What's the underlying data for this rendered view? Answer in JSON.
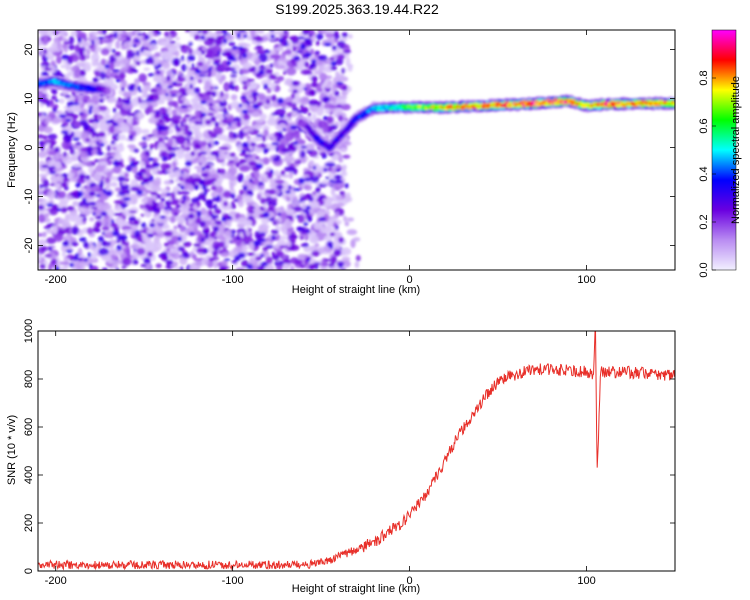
{
  "title": "S199.2025.363.19.44.R22",
  "chart_data": [
    {
      "type": "heatmap",
      "xlabel": "Height of straight line (km)",
      "ylabel": "Frequency (Hz)",
      "xlim": [
        -210,
        150
      ],
      "ylim": [
        -25,
        24
      ],
      "xticks": [
        -200,
        -100,
        0,
        100
      ],
      "yticks": [
        -20,
        -10,
        0,
        10,
        20
      ],
      "colorbar": {
        "label": "Normalized spectral amplitude",
        "range": [
          0,
          1
        ],
        "ticks": [
          0.0,
          0.2,
          0.4,
          0.6,
          0.8
        ],
        "tick_labels": [
          "0.0",
          "0.2",
          "0.4",
          "0.6",
          "0.8"
        ],
        "colors": [
          "#f2f0ff",
          "#b98cf2",
          "#6a00e0",
          "#0000ff",
          "#00ffff",
          "#00ff00",
          "#ffff00",
          "#ff0000",
          "#ff00ff"
        ]
      },
      "noise_region": {
        "x_range": [
          -210,
          -35
        ],
        "freq_range": [
          -25,
          24
        ],
        "typical_amplitude": [
          0.05,
          0.3
        ]
      },
      "signal_track": {
        "x": [
          -210,
          -200,
          -190,
          -180,
          -175,
          -170,
          -60,
          -55,
          -50,
          -45,
          -40,
          -35,
          -30,
          -25,
          -20,
          -10,
          0,
          20,
          40,
          60,
          80,
          90,
          100,
          110,
          130,
          150
        ],
        "frequency": [
          13,
          13.5,
          12.5,
          12,
          12,
          11.5,
          5,
          3,
          1,
          0,
          2,
          4,
          6,
          7,
          8,
          8.2,
          8.2,
          8.2,
          8.5,
          8.8,
          9.2,
          9.5,
          8.5,
          8.8,
          9,
          9
        ],
        "amplitude": [
          0.4,
          0.45,
          0.4,
          0.35,
          0.3,
          0.15,
          0.2,
          0.3,
          0.35,
          0.3,
          0.3,
          0.3,
          0.35,
          0.4,
          0.45,
          0.5,
          0.6,
          0.75,
          0.8,
          0.85,
          0.85,
          0.85,
          0.7,
          0.85,
          0.8,
          0.75
        ]
      }
    },
    {
      "type": "line",
      "xlabel": "Height of straight line (km)",
      "ylabel": "SNR (10 * v/v)",
      "xlim": [
        -210,
        150
      ],
      "ylim": [
        0,
        1000
      ],
      "xticks": [
        -200,
        -100,
        0,
        100
      ],
      "yticks": [
        0,
        200,
        400,
        600,
        800,
        1000
      ],
      "series": [
        {
          "name": "SNR",
          "color": "#e8302a",
          "x": [
            -210,
            -150,
            -100,
            -60,
            -50,
            -40,
            -30,
            -20,
            -10,
            0,
            10,
            20,
            25,
            30,
            40,
            50,
            60,
            70,
            80,
            90,
            100,
            104,
            105,
            106,
            108,
            110,
            120,
            130,
            140,
            150
          ],
          "y": [
            25,
            25,
            25,
            25,
            35,
            60,
            90,
            120,
            170,
            230,
            330,
            460,
            530,
            590,
            700,
            790,
            820,
            840,
            840,
            835,
            830,
            820,
            1050,
            400,
            840,
            830,
            830,
            825,
            820,
            815
          ],
          "noise": 18
        }
      ]
    }
  ]
}
